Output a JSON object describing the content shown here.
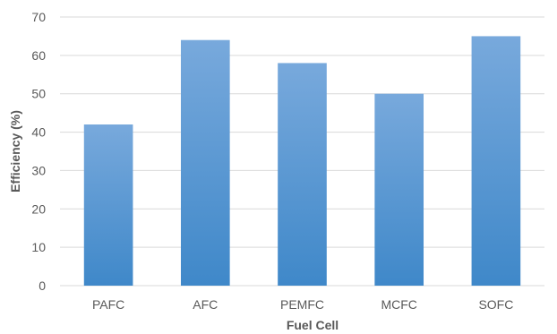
{
  "chart_data": {
    "type": "bar",
    "title": "",
    "xlabel": "Fuel Cell",
    "ylabel": "Efficiency (%)",
    "categories": [
      "PAFC",
      "AFC",
      "PEMFC",
      "MCFC",
      "SOFC"
    ],
    "values": [
      42,
      64,
      58,
      50,
      65
    ],
    "ylim": [
      0,
      70
    ],
    "yticks": [
      0,
      10,
      20,
      30,
      40,
      50,
      60,
      70
    ],
    "grid": "horizontal",
    "legend": "none",
    "colors": {
      "bar_top": "#78a9dc",
      "bar_bottom": "#3f88c9",
      "grid": "#d9d9d9",
      "text": "#595959"
    }
  }
}
